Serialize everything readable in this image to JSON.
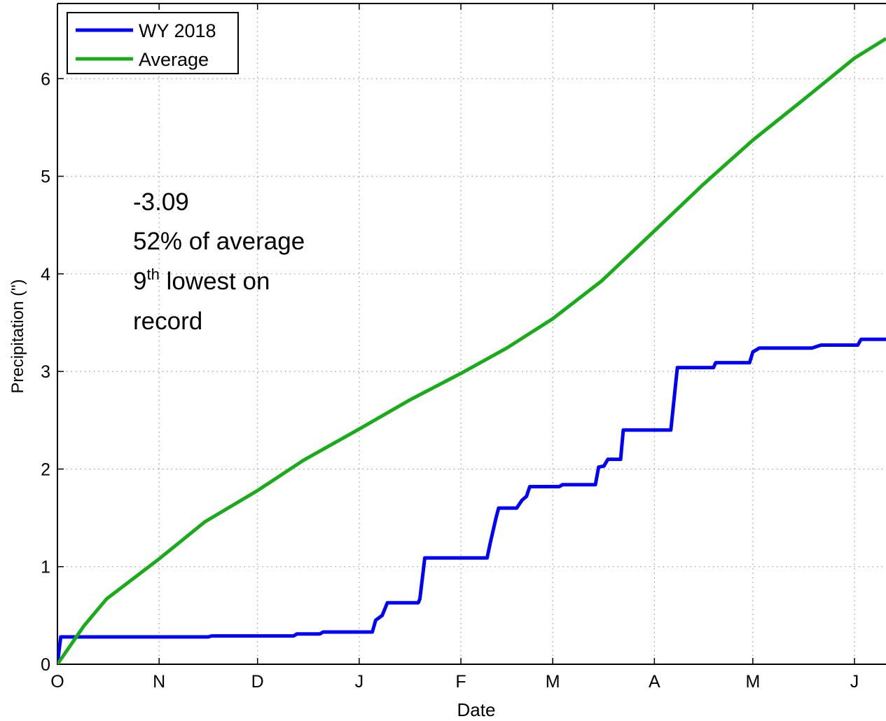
{
  "chart_data": {
    "type": "line",
    "x_label": "Date",
    "y_label": "Precipitation (\")",
    "xlim": [
      0,
      252.6
    ],
    "ylim": [
      0,
      6.77
    ],
    "xticks": [
      {
        "value": 0,
        "label": "O"
      },
      {
        "value": 31,
        "label": "N"
      },
      {
        "value": 61,
        "label": "D"
      },
      {
        "value": 92,
        "label": "J"
      },
      {
        "value": 123,
        "label": "F"
      },
      {
        "value": 151,
        "label": "M"
      },
      {
        "value": 182,
        "label": "A"
      },
      {
        "value": 212,
        "label": "M"
      },
      {
        "value": 243,
        "label": "J"
      }
    ],
    "yticks": [
      0,
      1,
      2,
      3,
      4,
      5,
      6
    ],
    "grid": true,
    "legend": "upper left",
    "annotation": [
      "-3.09",
      "52% of average",
      "9",
      "th",
      " lowest on",
      "record"
    ],
    "series": [
      {
        "name": "WY 2018",
        "color": "#0000ff",
        "x": [
          0,
          1,
          46,
          47,
          72,
          73,
          80,
          81,
          96,
          97,
          99,
          100.6,
          110,
          110.5,
          112,
          131,
          132,
          133.7,
          134.5,
          140,
          141.6,
          143,
          144,
          153,
          154,
          164,
          165,
          166.6,
          167.8,
          171.7,
          172.5,
          187,
          189,
          200,
          200.7,
          211,
          212,
          214,
          230,
          232.8,
          244,
          245,
          252.6
        ],
        "values": [
          0,
          0.28,
          0.28,
          0.29,
          0.29,
          0.31,
          0.31,
          0.33,
          0.33,
          0.45,
          0.5,
          0.63,
          0.63,
          0.67,
          1.09,
          1.09,
          1.25,
          1.5,
          1.6,
          1.6,
          1.68,
          1.72,
          1.82,
          1.82,
          1.84,
          1.84,
          2.02,
          2.03,
          2.1,
          2.1,
          2.4,
          2.4,
          3.04,
          3.04,
          3.09,
          3.09,
          3.2,
          3.24,
          3.24,
          3.27,
          3.27,
          3.33,
          3.33
        ]
      },
      {
        "name": "Average",
        "color": "#1aab1a",
        "x": [
          0,
          8,
          15,
          31,
          45,
          61,
          75,
          92,
          107,
          123,
          137,
          151,
          166,
          182,
          197,
          212,
          228,
          243,
          252.6
        ],
        "values": [
          0,
          0.39,
          0.67,
          1.08,
          1.46,
          1.78,
          2.09,
          2.41,
          2.7,
          2.98,
          3.24,
          3.54,
          3.93,
          4.44,
          4.92,
          5.37,
          5.8,
          6.21,
          6.41
        ]
      }
    ]
  }
}
